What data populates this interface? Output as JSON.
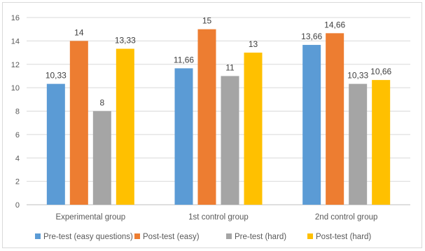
{
  "chart_data": {
    "type": "bar",
    "title": "",
    "xlabel": "",
    "ylabel": "",
    "categories": [
      "Experimental group",
      "1st control group",
      "2nd control group"
    ],
    "series": [
      {
        "name": "Pre-test (easy questions)",
        "values": [
          10.33,
          11.66,
          13.66
        ],
        "labels": [
          "10,33",
          "11,66",
          "13,66"
        ],
        "color": "#5b9bd5"
      },
      {
        "name": "Post-test (easy)",
        "values": [
          14,
          15,
          14.66
        ],
        "labels": [
          "14",
          "15",
          "14,66"
        ],
        "color": "#ed7d31"
      },
      {
        "name": "Pre-test (hard)",
        "values": [
          8,
          11,
          10.33
        ],
        "labels": [
          "8",
          "11",
          "10,33"
        ],
        "color": "#a5a5a5"
      },
      {
        "name": "Post-test (hard)",
        "values": [
          13.33,
          13,
          10.66
        ],
        "labels": [
          "13,33",
          "13",
          "10,66"
        ],
        "color": "#ffc000"
      }
    ],
    "ylim": [
      0,
      16
    ],
    "yticks": [
      "0",
      "2",
      "4",
      "6",
      "8",
      "10",
      "12",
      "14",
      "16"
    ],
    "grid": true,
    "legend_position": "bottom"
  }
}
